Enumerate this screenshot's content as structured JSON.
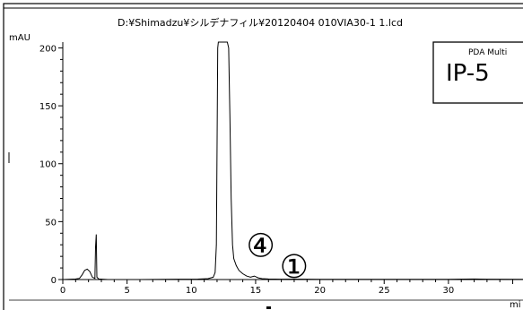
{
  "chart_data": {
    "type": "line",
    "file_path": "D:¥Shimadzu¥シルデナフィル¥20120404 010VIA30-1 1.lcd",
    "y_unit": "mAU",
    "x_unit": "mi",
    "xlim": [
      0,
      35.8
    ],
    "ylim": [
      0,
      205
    ],
    "x_ticks": [
      0,
      5,
      10,
      15,
      20,
      25,
      30
    ],
    "y_ticks": [
      0,
      50,
      100,
      150,
      200
    ],
    "x_tick_labels": [
      "0",
      "5",
      "10",
      "15",
      "20",
      "25",
      "30"
    ],
    "y_tick_labels": [
      "0",
      "50",
      "100",
      "150",
      "200"
    ],
    "grid": false,
    "legend_box": {
      "detector": "PDA Multi",
      "sample_label": "IP-5"
    },
    "annotations": [
      {
        "text": "④",
        "x": 15.4,
        "y": 29
      },
      {
        "text": "①",
        "x": 18.0,
        "y": 11
      }
    ],
    "series": [
      {
        "color": "#000000",
        "x": [
          0,
          1.0,
          1.3,
          1.5,
          1.7,
          1.9,
          2.1,
          2.3,
          2.5,
          2.55,
          2.6,
          2.65,
          2.8,
          3.5,
          6,
          9,
          10.5,
          11.3,
          11.7,
          11.85,
          11.95,
          12.0,
          12.05,
          12.1,
          12.2,
          12.5,
          12.8,
          12.9,
          13.0,
          13.1,
          13.2,
          13.3,
          13.5,
          13.7,
          14.0,
          14.3,
          14.6,
          14.9,
          15.2,
          15.5,
          16,
          17,
          18,
          20,
          25,
          30,
          32,
          33,
          35.8
        ],
        "y": [
          0,
          0.5,
          1,
          4,
          8,
          9,
          7,
          2,
          1,
          28,
          39,
          2,
          0.5,
          0,
          0,
          0.3,
          0.4,
          0.8,
          2,
          6,
          30,
          120,
          200,
          205,
          205,
          205,
          205,
          200,
          140,
          70,
          30,
          18,
          12,
          8,
          5,
          3,
          2,
          3,
          1.5,
          0.8,
          0.5,
          0.3,
          0.4,
          0.2,
          0.2,
          0.2,
          0.5,
          0.3,
          0.2
        ]
      }
    ]
  }
}
